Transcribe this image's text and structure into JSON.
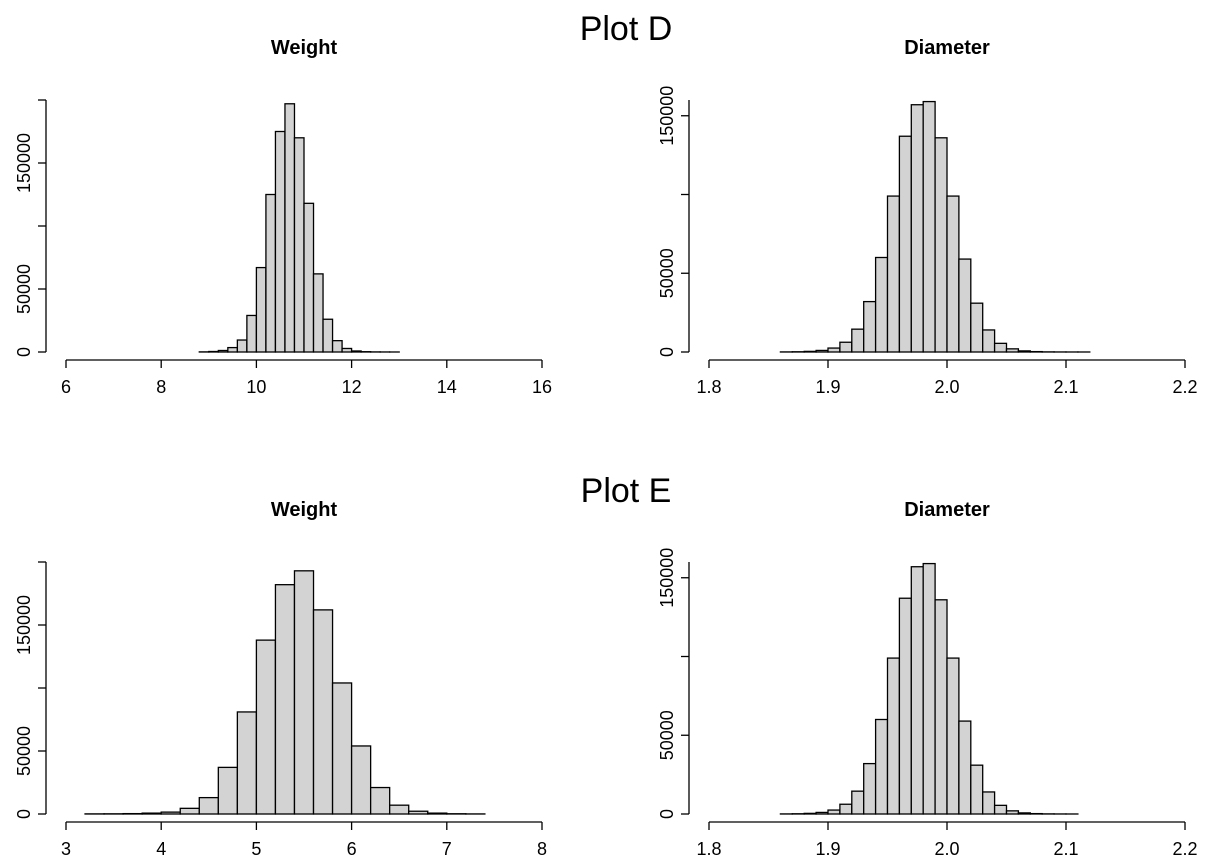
{
  "group_titles": [
    "Plot D",
    "Plot E"
  ],
  "chart_data": [
    {
      "group": "Plot D",
      "type": "bar",
      "title": "Weight",
      "xlabel": "",
      "ylabel": "",
      "xlim": [
        6,
        16
      ],
      "ylim": [
        0,
        200000
      ],
      "x_ticks": [
        6,
        8,
        10,
        12,
        14,
        16
      ],
      "y_ticks": [
        0,
        50000,
        150000
      ],
      "bin_width": 0.2,
      "bin_edges_start": 8.8,
      "values": [
        100,
        400,
        1200,
        3500,
        9500,
        29000,
        67000,
        125000,
        175000,
        197000,
        170000,
        118000,
        62000,
        26000,
        9000,
        2800,
        800,
        250,
        80,
        30,
        10
      ]
    },
    {
      "group": "Plot D",
      "type": "bar",
      "title": "Diameter",
      "xlabel": "",
      "ylabel": "",
      "xlim": [
        1.8,
        2.2
      ],
      "ylim": [
        0,
        160000
      ],
      "x_ticks": [
        "1.8",
        "1.9",
        "2.0",
        "2.1",
        "2.2"
      ],
      "y_ticks": [
        0,
        50000,
        150000
      ],
      "bin_width": 0.01,
      "bin_edges_start": 1.86,
      "values": [
        60,
        150,
        400,
        1000,
        2500,
        6200,
        14500,
        32000,
        60000,
        99000,
        137000,
        157000,
        159000,
        136000,
        99000,
        59000,
        31000,
        14000,
        5500,
        2000,
        700,
        250,
        80,
        30,
        10,
        5
      ]
    },
    {
      "group": "Plot E",
      "type": "bar",
      "title": "Weight",
      "xlabel": "",
      "ylabel": "",
      "xlim": [
        3,
        8
      ],
      "ylim": [
        0,
        200000
      ],
      "x_ticks": [
        3,
        4,
        5,
        6,
        7,
        8
      ],
      "y_ticks": [
        0,
        50000,
        150000
      ],
      "bin_width": 0.2,
      "bin_edges_start": 3.2,
      "values": [
        100,
        150,
        300,
        700,
        1500,
        4500,
        13000,
        37000,
        81000,
        138000,
        182000,
        193000,
        162000,
        104000,
        54000,
        21000,
        7000,
        2200,
        700,
        200,
        60
      ]
    },
    {
      "group": "Plot E",
      "type": "bar",
      "title": "Diameter",
      "xlabel": "",
      "ylabel": "",
      "xlim": [
        1.8,
        2.2
      ],
      "ylim": [
        0,
        160000
      ],
      "x_ticks": [
        "1.8",
        "1.9",
        "2.0",
        "2.1",
        "2.2"
      ],
      "y_ticks": [
        0,
        50000,
        150000
      ],
      "bin_width": 0.01,
      "bin_edges_start": 1.86,
      "values": [
        60,
        150,
        400,
        1000,
        2500,
        6200,
        14500,
        32000,
        60000,
        99000,
        137000,
        157000,
        159000,
        136000,
        99000,
        59000,
        31000,
        14000,
        5500,
        2000,
        700,
        250,
        80,
        30,
        10
      ]
    }
  ]
}
